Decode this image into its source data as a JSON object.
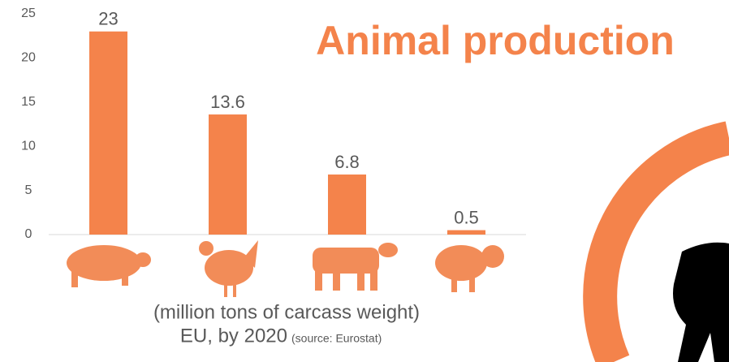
{
  "chart_data": {
    "type": "bar",
    "title": "Animal production",
    "subtitle": "(million tons of carcass weight)",
    "note": "EU, by 2020",
    "source": "(source: Eurostat)",
    "categories": [
      null,
      null,
      null,
      null
    ],
    "values": [
      23,
      13.6,
      6.8,
      0.5
    ],
    "color": "#f4834b",
    "ylim": [
      0,
      25
    ],
    "yticks": [
      0,
      5,
      10,
      15,
      20,
      25
    ],
    "grid": false
  }
}
